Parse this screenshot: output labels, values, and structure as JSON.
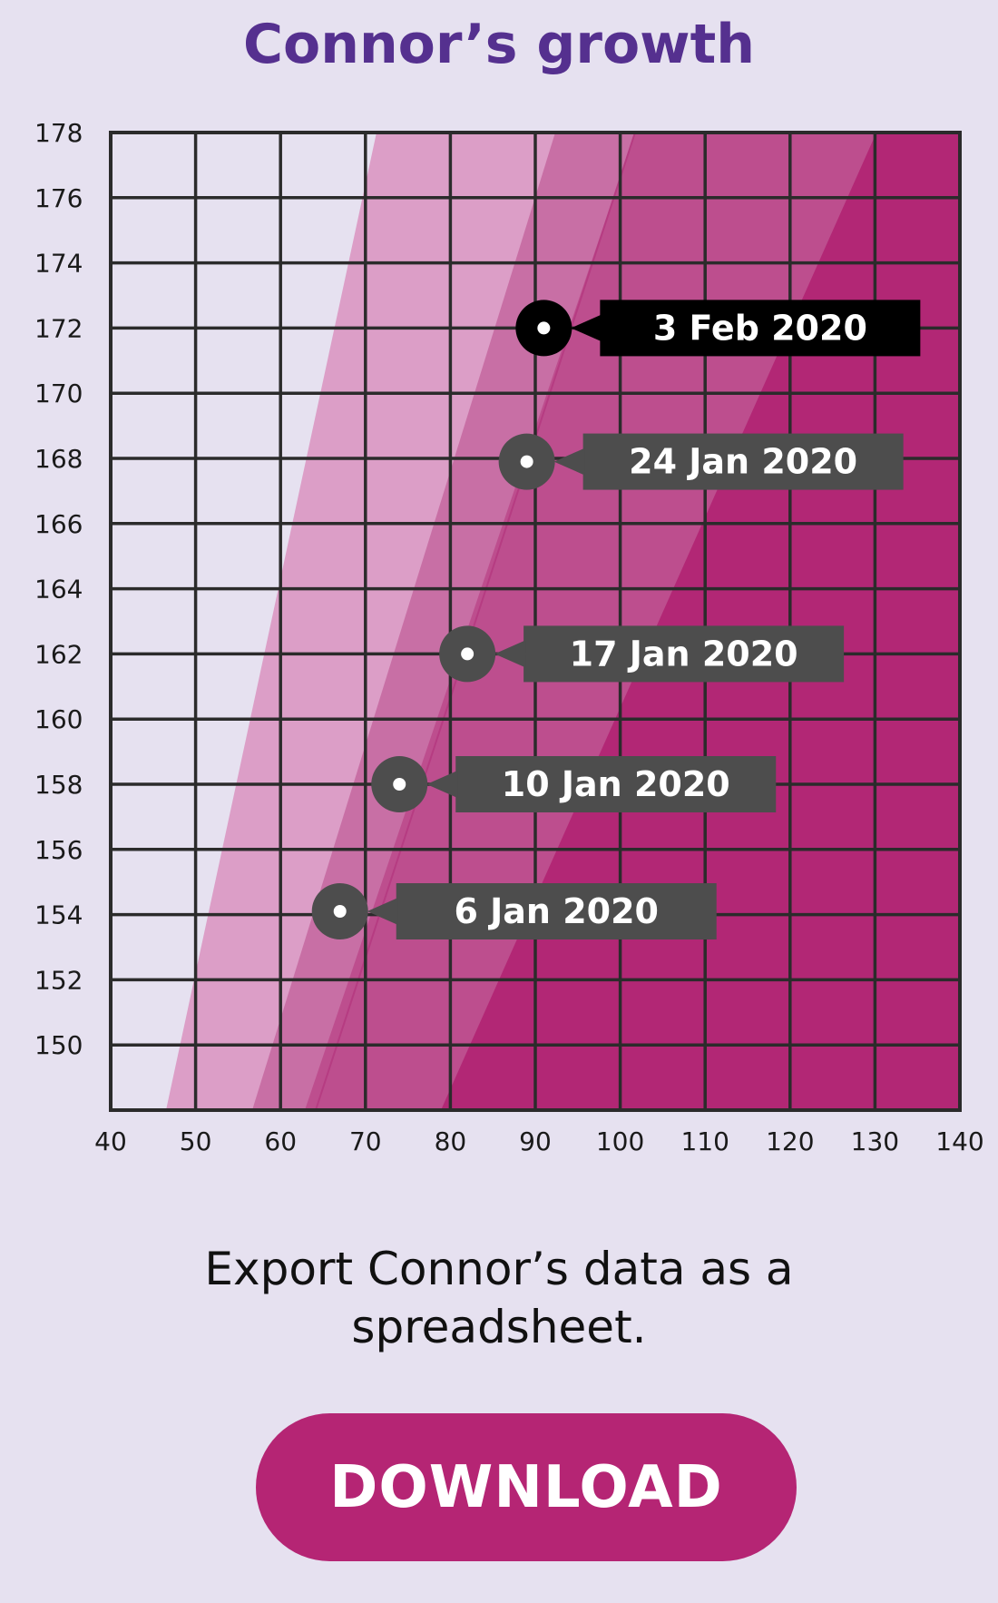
{
  "page": {
    "title": "Connor’s growth",
    "export_text": "Export Connor’s data as a spreadsheet.",
    "download_label": "DOWNLOAD"
  },
  "colors": {
    "title": "#55308f",
    "grid": "#2b2b2b",
    "band_lightest": "#e6e1f0",
    "band_light_pink": "#dc9ec7",
    "band_light_pink_2": "#e0a2c9",
    "band_mid_pink": "#c86fa5",
    "band_medium_magenta": "#bd4e8e",
    "band_magenta": "#b22775",
    "callout_latest": "#000000",
    "callout_previous": "#4d4d4d",
    "download_button": "#b52574"
  },
  "chart_data": {
    "type": "scatter",
    "title": "Connor’s growth",
    "xlabel": "",
    "ylabel": "",
    "xlim": [
      40,
      140
    ],
    "ylim": [
      148,
      178
    ],
    "x_ticks": [
      40,
      50,
      60,
      70,
      80,
      90,
      100,
      110,
      120,
      130,
      140
    ],
    "y_ticks": [
      150,
      152,
      154,
      156,
      158,
      160,
      162,
      164,
      166,
      168,
      170,
      172,
      174,
      176,
      178
    ],
    "grid": true,
    "points": [
      {
        "label": "6 Jan 2020",
        "x": 67,
        "y": 154.1,
        "latest": false
      },
      {
        "label": "10 Jan 2020",
        "x": 74,
        "y": 158.0,
        "latest": false
      },
      {
        "label": "17 Jan 2020",
        "x": 82,
        "y": 162.0,
        "latest": false
      },
      {
        "label": "24 Jan 2020",
        "x": 89,
        "y": 167.9,
        "latest": false
      },
      {
        "label": "3 Feb 2020",
        "x": 91,
        "y": 172.0,
        "latest": true
      }
    ]
  }
}
